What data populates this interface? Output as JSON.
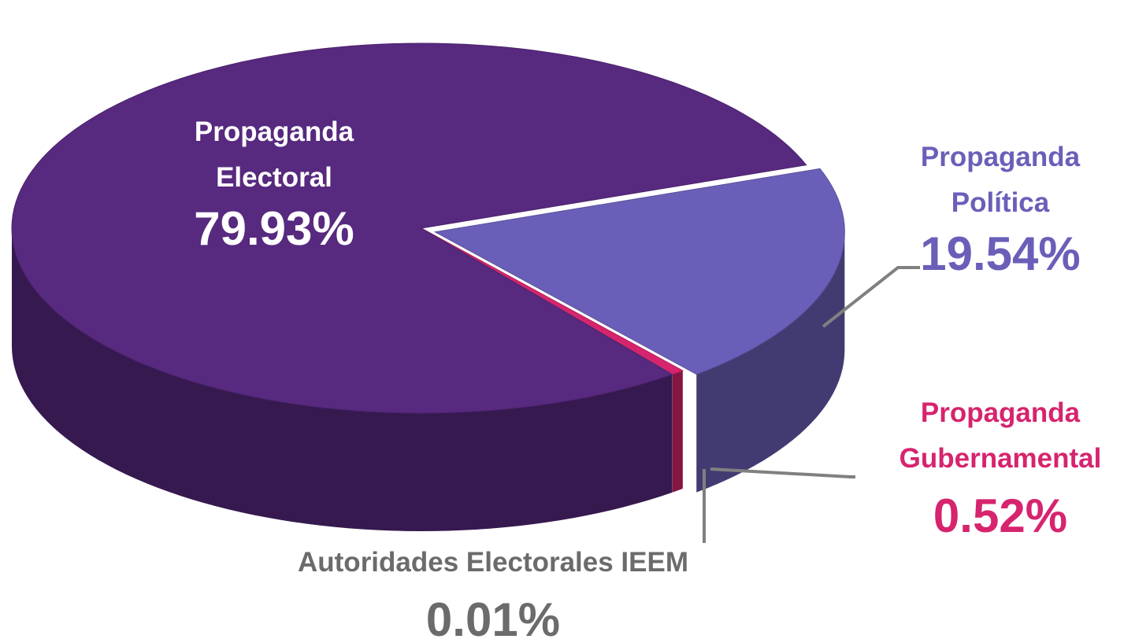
{
  "chart_data": {
    "type": "pie",
    "categories": [
      "Propaganda Electoral",
      "Propaganda Política",
      "Propaganda Gubernamental",
      "Autoridades Electorales IEEM"
    ],
    "values": [
      79.93,
      19.54,
      0.52,
      0.01
    ],
    "value_labels": [
      "79.93%",
      "19.54%",
      "0.52%",
      "0.01%"
    ],
    "colors": [
      "#57297f",
      "#6a5fb8",
      "#d6246e",
      "#6b6b6b"
    ],
    "label_colors": [
      "#ffffff",
      "#6a5fb8",
      "#d6246e",
      "#6b6b6b"
    ]
  }
}
